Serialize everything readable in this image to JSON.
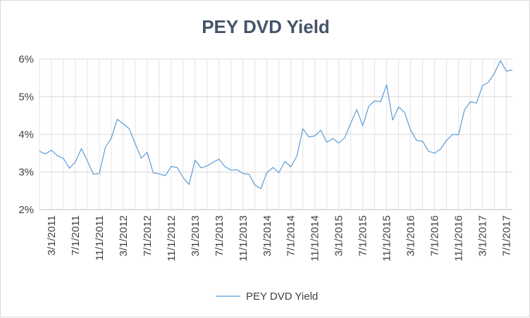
{
  "chart_data": {
    "type": "line",
    "title": "PEY DVD Yield",
    "xlabel": "",
    "ylabel": "",
    "ylim": [
      0.02,
      0.06
    ],
    "y_ticks": [
      "2%",
      "3%",
      "4%",
      "5%",
      "6%"
    ],
    "y_tick_values": [
      0.02,
      0.03,
      0.04,
      0.05,
      0.06
    ],
    "x_tick_labels": [
      "3/1/2011",
      "7/1/2011",
      "11/1/2011",
      "3/1/2012",
      "7/1/2012",
      "11/1/2012",
      "3/1/2013",
      "7/1/2013",
      "11/1/2013",
      "3/1/2014",
      "7/1/2014",
      "11/1/2014",
      "3/1/2015",
      "7/1/2015",
      "11/1/2015",
      "3/1/2016",
      "7/1/2016",
      "11/1/2016",
      "3/1/2017",
      "7/1/2017"
    ],
    "grid": true,
    "legend_position": "bottom",
    "series_color": "#5b9bd5",
    "series": [
      {
        "name": "PEY DVD Yield",
        "x": [
          "2011-01-01",
          "2011-02-01",
          "2011-03-01",
          "2011-04-01",
          "2011-05-01",
          "2011-06-01",
          "2011-07-01",
          "2011-08-01",
          "2011-09-01",
          "2011-10-01",
          "2011-11-01",
          "2011-12-01",
          "2012-01-01",
          "2012-02-01",
          "2012-03-01",
          "2012-04-01",
          "2012-05-01",
          "2012-06-01",
          "2012-07-01",
          "2012-08-01",
          "2012-09-01",
          "2012-10-01",
          "2012-11-01",
          "2012-12-01",
          "2013-01-01",
          "2013-02-01",
          "2013-03-01",
          "2013-04-01",
          "2013-05-01",
          "2013-06-01",
          "2013-07-01",
          "2013-08-01",
          "2013-09-01",
          "2013-10-01",
          "2013-11-01",
          "2013-12-01",
          "2014-01-01",
          "2014-02-01",
          "2014-03-01",
          "2014-04-01",
          "2014-05-01",
          "2014-06-01",
          "2014-07-01",
          "2014-08-01",
          "2014-09-01",
          "2014-10-01",
          "2014-11-01",
          "2014-12-01",
          "2015-01-01",
          "2015-02-01",
          "2015-03-01",
          "2015-04-01",
          "2015-05-01",
          "2015-06-01",
          "2015-07-01",
          "2015-08-01",
          "2015-09-01",
          "2015-10-01",
          "2015-11-01",
          "2015-12-01",
          "2016-01-01",
          "2016-02-01",
          "2016-03-01",
          "2016-04-01",
          "2016-05-01",
          "2016-06-01",
          "2016-07-01",
          "2016-08-01",
          "2016-09-01",
          "2016-10-01",
          "2016-11-01",
          "2016-12-01",
          "2017-01-01",
          "2017-02-01",
          "2017-03-01",
          "2017-04-01",
          "2017-05-01",
          "2017-06-01",
          "2017-07-01",
          "2017-08-01"
        ],
        "values": [
          0.0355,
          0.0348,
          0.0358,
          0.0343,
          0.0336,
          0.031,
          0.0327,
          0.0362,
          0.033,
          0.0294,
          0.0296,
          0.0365,
          0.039,
          0.044,
          0.0428,
          0.0415,
          0.0375,
          0.0337,
          0.0352,
          0.0298,
          0.0295,
          0.029,
          0.0315,
          0.0312,
          0.0285,
          0.0267,
          0.0332,
          0.0311,
          0.0316,
          0.0326,
          0.0334,
          0.0314,
          0.0305,
          0.0306,
          0.0296,
          0.0294,
          0.0265,
          0.0256,
          0.0299,
          0.0312,
          0.0298,
          0.0328,
          0.0314,
          0.0342,
          0.0415,
          0.0393,
          0.0396,
          0.0411,
          0.0379,
          0.0389,
          0.0377,
          0.0391,
          0.043,
          0.0466,
          0.0423,
          0.0475,
          0.0489,
          0.0487,
          0.0532,
          0.0438,
          0.0473,
          0.0458,
          0.0411,
          0.0384,
          0.0382,
          0.0355,
          0.035,
          0.0361,
          0.0384,
          0.04,
          0.0399,
          0.0465,
          0.0487,
          0.0483,
          0.0529,
          0.0539,
          0.0562,
          0.0596,
          0.0568,
          0.0571
        ]
      }
    ]
  }
}
